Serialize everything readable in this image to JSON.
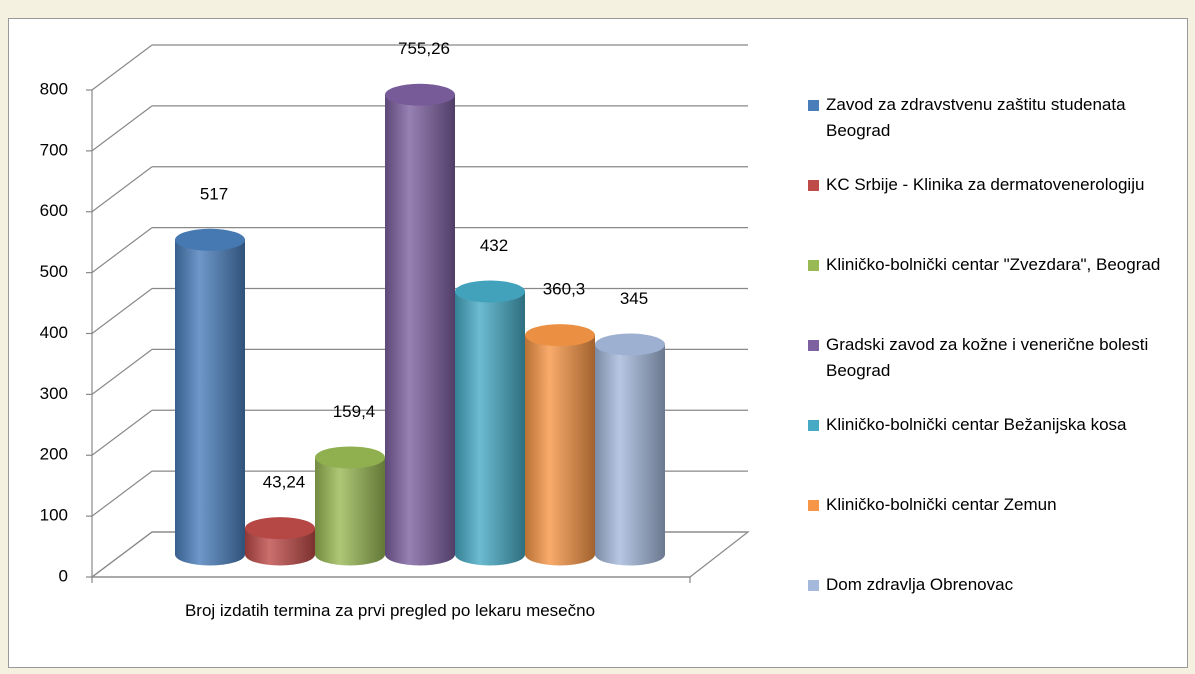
{
  "chart_data": {
    "type": "cylinder-bar",
    "categories": [
      "Broj izdatih termina za prvi pregled po lekaru mesečno"
    ],
    "series": [
      {
        "name": "Zavod za zdravstvenu zaštitu studenata Beograd",
        "color": "#4a7ebb",
        "values": [
          517
        ]
      },
      {
        "name": "KC Srbije - Klinika za dermatovenerologiju",
        "color": "#be4b48",
        "values": [
          43.24
        ],
        "value_labels": [
          "43,24"
        ]
      },
      {
        "name": "Kliničko-bolnički centar \"Zvezdara\", Beograd",
        "color": "#98b954",
        "values": [
          159.4
        ],
        "value_labels": [
          "159,4"
        ]
      },
      {
        "name": "Gradski zavod za kožne i venerične bolesti Beograd",
        "color": "#7d60a0",
        "values": [
          755.26
        ],
        "value_labels": [
          "755,26"
        ]
      },
      {
        "name": "Kliničko-bolnički centar Bežanijska kosa",
        "color": "#46aac5",
        "values": [
          432
        ]
      },
      {
        "name": "Kliničko-bolnički centar Zemun",
        "color": "#f79646",
        "values": [
          360.3
        ],
        "value_labels": [
          "360,3"
        ]
      },
      {
        "name": "Dom zdravlja Obrenovac",
        "color": "#a5b9dc",
        "values": [
          345
        ]
      }
    ],
    "ylim": [
      0,
      800
    ],
    "yticks": [
      0,
      100,
      200,
      300,
      400,
      500,
      600,
      700,
      800
    ],
    "grid": true,
    "legend": "right"
  }
}
